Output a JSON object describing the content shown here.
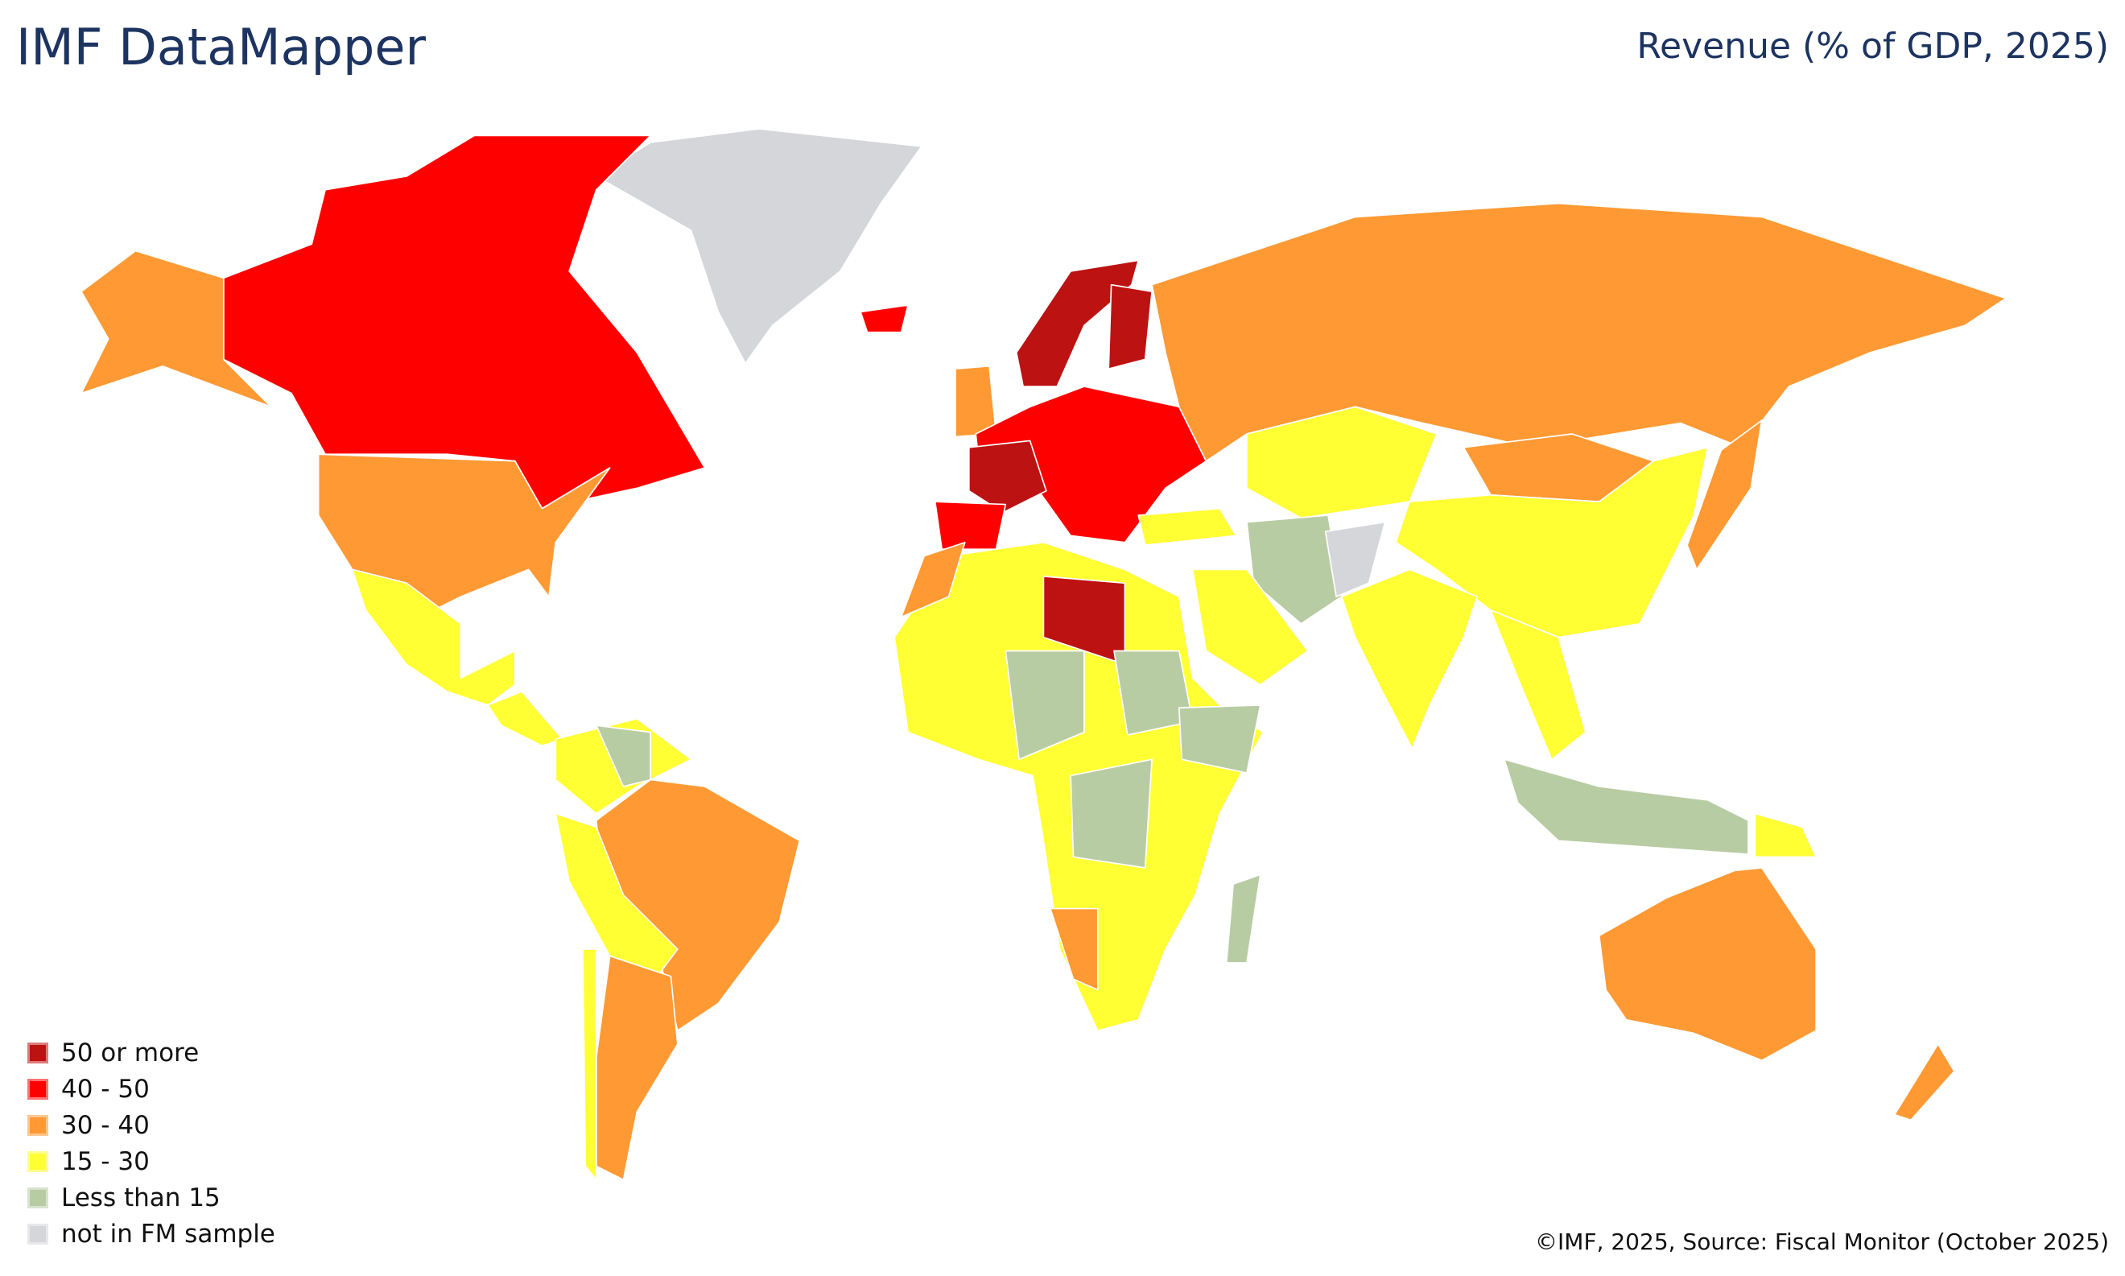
{
  "header": {
    "title": "IMF DataMapper",
    "subtitle": "Revenue (% of GDP, 2025)"
  },
  "legend": [
    {
      "key": "50+",
      "label": "50 or more",
      "color": "#bd1212"
    },
    {
      "key": "40-50",
      "label": "40 - 50",
      "color": "#ff0000"
    },
    {
      "key": "30-40",
      "label": "30 - 40",
      "color": "#ff9933"
    },
    {
      "key": "15-30",
      "label": "15 - 30",
      "color": "#ffff33"
    },
    {
      "key": "lt15",
      "label": "Less than 15",
      "color": "#b8cca4"
    },
    {
      "key": "na",
      "label": "not in FM sample",
      "color": "#d5d6da"
    }
  ],
  "region_categories": {
    "greenland": "na",
    "canada": "40-50",
    "alaska": "30-40",
    "usa": "30-40",
    "mexico": "15-30",
    "central-america": "15-30",
    "colombia-venezuela": "15-30",
    "guyana": "lt15",
    "brazil": "30-40",
    "peru-bolivia": "15-30",
    "argentina": "30-40",
    "chile": "15-30",
    "iceland": "40-50",
    "uk": "30-40",
    "europe": "40-50",
    "norway": "50+",
    "finland": "50+",
    "france": "50+",
    "spain": "40-50",
    "russia": "30-40",
    "kazakhstan": "15-30",
    "mongolia": "30-40",
    "china": "15-30",
    "turkey": "15-30",
    "iran": "lt15",
    "afghanistan": "na",
    "saudi-arabia": "15-30",
    "india": "15-30",
    "southeast-asia": "15-30",
    "indonesia": "lt15",
    "papua-new-guinea": "15-30",
    "japan": "30-40",
    "australia": "30-40",
    "new-zealand": "30-40",
    "africa": "15-30",
    "morocco": "30-40",
    "libya": "50+",
    "sudan": "lt15",
    "niger-chad": "lt15",
    "drc": "lt15",
    "ethiopia": "lt15",
    "namibia": "30-40",
    "madagascar": "lt15"
  },
  "footer": {
    "source": "©IMF, 2025, Source: Fiscal Monitor (October 2025)"
  }
}
